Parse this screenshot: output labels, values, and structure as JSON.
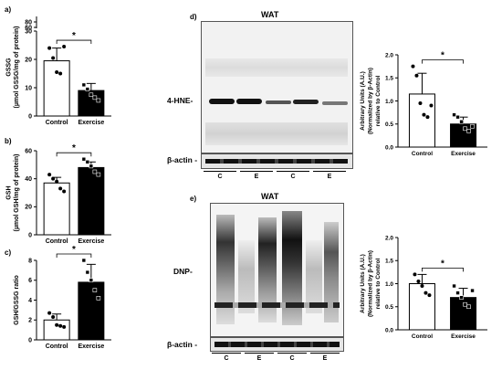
{
  "panel_letters": {
    "a": "a)",
    "b": "b)",
    "c": "c)",
    "d": "d)",
    "e": "e)"
  },
  "blots": {
    "d": {
      "title": "WAT",
      "target_label": "4-HNE-",
      "actin_label": "β-actin -",
      "lanes": [
        "C",
        "E",
        "C",
        "E"
      ]
    },
    "e": {
      "title": "WAT",
      "target_label": "DNP-",
      "actin_label": "β-actin -",
      "lanes": [
        "C",
        "E",
        "C",
        "E"
      ]
    }
  },
  "colors": {
    "control_fill": "#ffffff",
    "exercise_fill": "#000000",
    "axis": "#000000"
  },
  "chart_data": [
    {
      "id": "a",
      "type": "bar",
      "categories": [
        "Control",
        "Exercise"
      ],
      "values": [
        19.5,
        9
      ],
      "errors": [
        4.5,
        2.5
      ],
      "points": [
        [
          24,
          20.5,
          15.5,
          15,
          24.5
        ],
        [
          11,
          9.5,
          7.5,
          6.5,
          5.5
        ]
      ],
      "ylabel": "GSSG\n(µmol GSSG/mg of protein)",
      "yticks": [
        0,
        10,
        20,
        30,
        60,
        80
      ],
      "ylim": [
        0,
        30
      ],
      "axis_break": true,
      "significance": "*"
    },
    {
      "id": "b",
      "type": "bar",
      "categories": [
        "Control",
        "Exercise"
      ],
      "values": [
        37,
        48
      ],
      "errors": [
        4,
        4
      ],
      "points": [
        [
          43,
          40,
          38,
          33,
          31
        ],
        [
          54,
          52,
          49,
          45,
          43
        ]
      ],
      "ylabel": "GSH\n(µmol GSH/mg of protein)",
      "yticks": [
        0,
        20,
        40,
        60
      ],
      "ylim": [
        0,
        60
      ],
      "significance": "*"
    },
    {
      "id": "c",
      "type": "bar",
      "categories": [
        "Control",
        "Exercise"
      ],
      "values": [
        2,
        5.8
      ],
      "errors": [
        0.6,
        1.8
      ],
      "points": [
        [
          2.7,
          2.3,
          1.5,
          1.4,
          1.3
        ],
        [
          8,
          6.8,
          6,
          5,
          4.2
        ]
      ],
      "ylabel": "GSH/GSSG ratio",
      "yticks": [
        0,
        2,
        4,
        6,
        8
      ],
      "ylim": [
        0,
        8
      ],
      "significance": "*"
    },
    {
      "id": "d",
      "type": "bar",
      "categories": [
        "Control",
        "Exercise"
      ],
      "values": [
        1.15,
        0.5
      ],
      "errors": [
        0.45,
        0.15
      ],
      "points": [
        [
          1.75,
          1.55,
          0.95,
          0.7,
          0.65,
          0.9
        ],
        [
          0.7,
          0.65,
          0.55,
          0.4,
          0.35,
          0.45
        ]
      ],
      "ylabel": "Arbitrary Units (A.U.)\n(Normalized by β-Actin)\nrelative to Control",
      "yticks": [
        0.0,
        0.5,
        1.0,
        1.5,
        2.0
      ],
      "ytick_labels": [
        "0.0",
        "0.5",
        "1.0",
        "1.5",
        "2.0"
      ],
      "ylim": [
        0,
        2.0
      ],
      "significance": "*"
    },
    {
      "id": "e",
      "type": "bar",
      "categories": [
        "Control",
        "Exercise"
      ],
      "values": [
        1.0,
        0.7
      ],
      "errors": [
        0.2,
        0.2
      ],
      "points": [
        [
          1.2,
          1.05,
          0.95,
          0.8,
          0.75
        ],
        [
          0.95,
          0.8,
          0.7,
          0.55,
          0.5,
          0.85
        ]
      ],
      "ylabel": "Arbitrary Units (A.U.)\n(Normalized by β-Actin)\nrelative to Control",
      "yticks": [
        0.0,
        0.5,
        1.0,
        1.5,
        2.0
      ],
      "ytick_labels": [
        "0.0",
        "0.5",
        "1.0",
        "1.5",
        "2.0"
      ],
      "ylim": [
        0,
        2.0
      ],
      "significance": "*"
    }
  ]
}
